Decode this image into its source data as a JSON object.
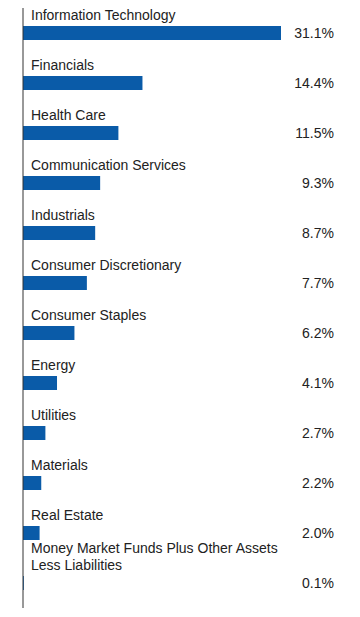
{
  "chart_data": {
    "type": "bar",
    "orientation": "horizontal",
    "categories": [
      "Information Technology",
      "Financials",
      "Health Care",
      "Communication Services",
      "Industrials",
      "Consumer Discretionary",
      "Consumer Staples",
      "Energy",
      "Utilities",
      "Materials",
      "Real Estate",
      "Money Market Funds Plus Other Assets Less Liabilities"
    ],
    "values": [
      31.1,
      14.4,
      11.5,
      9.3,
      8.7,
      7.7,
      6.2,
      4.1,
      2.7,
      2.2,
      2.0,
      0.1
    ],
    "value_labels": [
      "31.1%",
      "14.4%",
      "11.5%",
      "9.3%",
      "8.7%",
      "7.7%",
      "6.2%",
      "4.1%",
      "2.7%",
      "2.2%",
      "2.0%",
      "0.1%"
    ],
    "color": "#0a5ba8",
    "xlim": [
      0,
      31.1
    ],
    "tick_labels": false,
    "data_labels": true,
    "grid": false
  }
}
